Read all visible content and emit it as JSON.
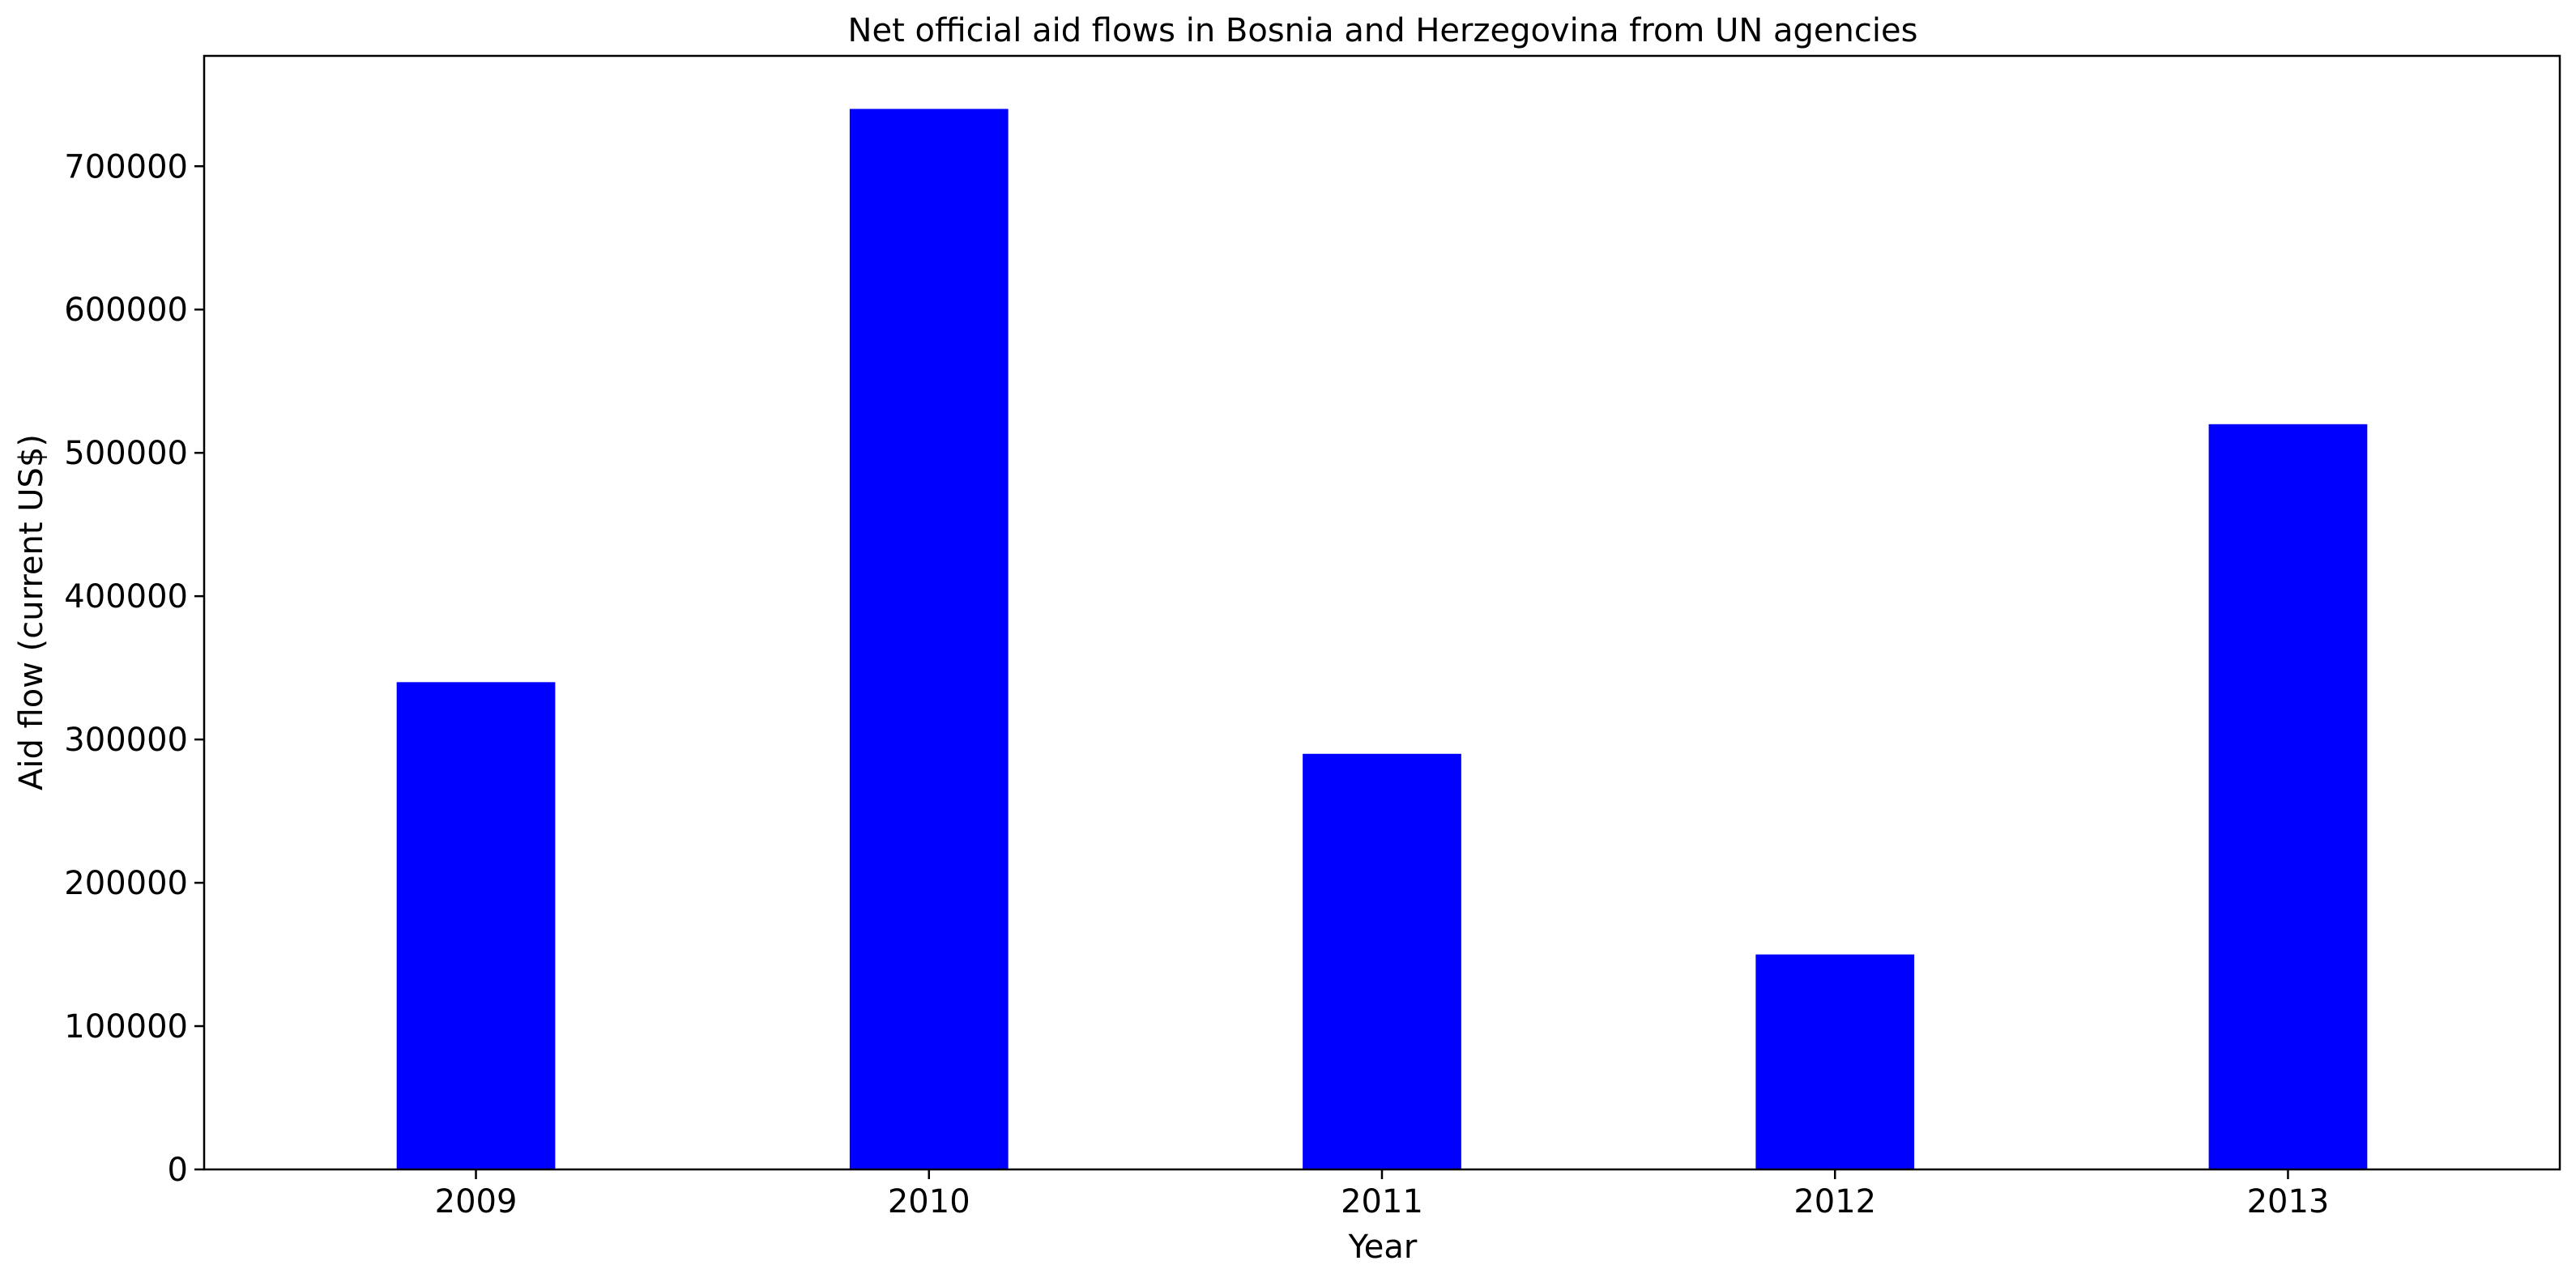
{
  "chart_data": {
    "type": "bar",
    "title": "Net official aid flows in Bosnia and Herzegovina from UN agencies",
    "xlabel": "Year",
    "ylabel": "Aid flow (current US$)",
    "categories": [
      "2009",
      "2010",
      "2011",
      "2012",
      "2013"
    ],
    "values": [
      340000,
      740000,
      290000,
      150000,
      520000
    ],
    "ylim": [
      0,
      777000
    ],
    "yticks": [
      0,
      100000,
      200000,
      300000,
      400000,
      500000,
      600000,
      700000
    ],
    "ytick_labels": [
      "0",
      "100000",
      "200000",
      "300000",
      "400000",
      "500000",
      "600000",
      "700000"
    ],
    "bar_color": "#0000ff",
    "grid": false,
    "legend": "none"
  }
}
